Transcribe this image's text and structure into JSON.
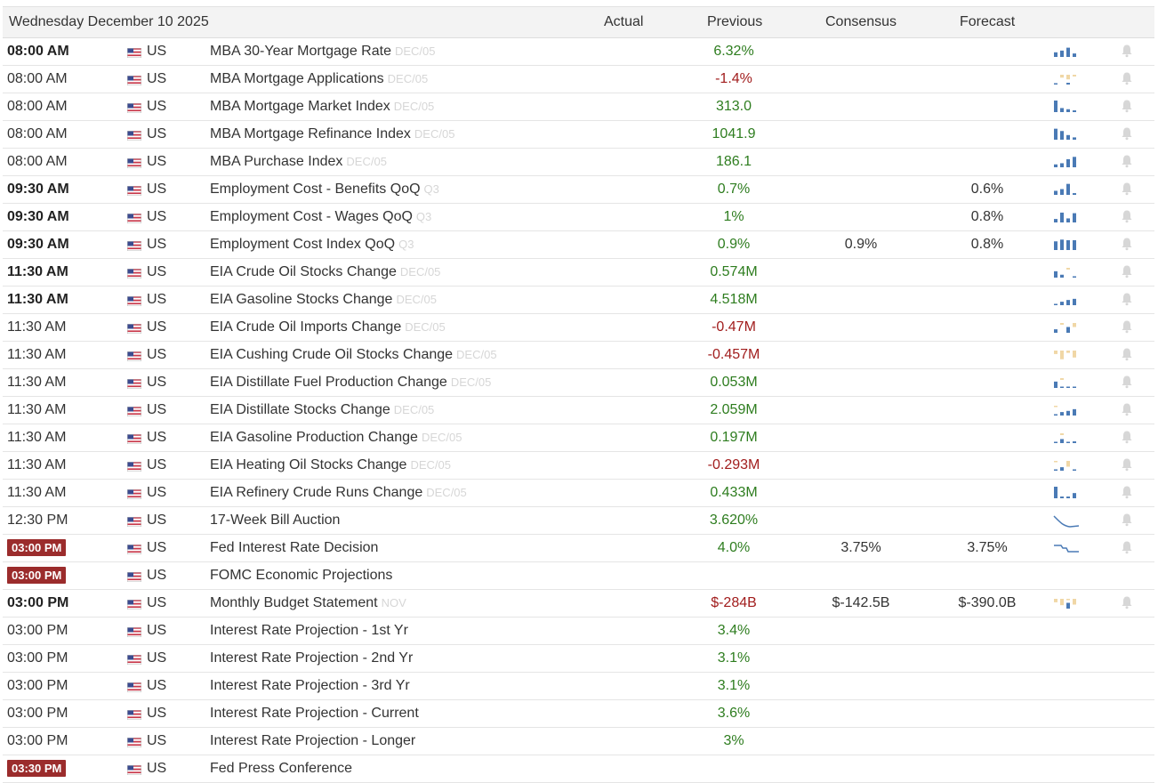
{
  "header": {
    "date": "Wednesday December 10 2025",
    "actual": "Actual",
    "previous": "Previous",
    "consensus": "Consensus",
    "forecast": "Forecast"
  },
  "colors": {
    "positive": "#2e7d1f",
    "negative": "#a11d1d",
    "badge": "#9b2c2c",
    "spark_up": "#4a7ab5",
    "spark_down": "#f0d7a6"
  },
  "rows": [
    {
      "time": "08:00 AM",
      "style": "bold",
      "country": "US",
      "event": "MBA 30-Year Mortgage Rate",
      "ref": "DEC/05",
      "actual": "",
      "previous": "6.32%",
      "prev_tone": "pos",
      "consensus": "",
      "forecast": "",
      "spark": "bars",
      "bars": [
        0.4,
        0.55,
        0.8,
        0.3
      ],
      "bars_neg": [
        0,
        0,
        0,
        0
      ]
    },
    {
      "time": "08:00 AM",
      "style": "normal",
      "country": "US",
      "event": "MBA Mortgage Applications",
      "ref": "DEC/05",
      "actual": "",
      "previous": "-1.4%",
      "prev_tone": "neg",
      "consensus": "",
      "forecast": "",
      "spark": "bars",
      "bars": [
        0.1,
        0,
        0.15,
        0
      ],
      "bars_neg": [
        0,
        0.25,
        0.4,
        0.15
      ]
    },
    {
      "time": "08:00 AM",
      "style": "normal",
      "country": "US",
      "event": "MBA Mortgage Market Index",
      "ref": "DEC/05",
      "actual": "",
      "previous": "313.0",
      "prev_tone": "pos",
      "consensus": "",
      "forecast": "",
      "spark": "bars",
      "bars": [
        1.0,
        0.35,
        0.25,
        0.15
      ],
      "bars_neg": [
        0,
        0,
        0,
        0
      ]
    },
    {
      "time": "08:00 AM",
      "style": "normal",
      "country": "US",
      "event": "MBA Mortgage Refinance Index",
      "ref": "DEC/05",
      "actual": "",
      "previous": "1041.9",
      "prev_tone": "pos",
      "consensus": "",
      "forecast": "",
      "spark": "bars",
      "bars": [
        0.95,
        0.75,
        0.4,
        0.2
      ],
      "bars_neg": [
        0,
        0,
        0,
        0
      ]
    },
    {
      "time": "08:00 AM",
      "style": "normal",
      "country": "US",
      "event": "MBA Purchase Index",
      "ref": "DEC/05",
      "actual": "",
      "previous": "186.1",
      "prev_tone": "pos",
      "consensus": "",
      "forecast": "",
      "spark": "bars",
      "bars": [
        0.25,
        0.35,
        0.7,
        0.9
      ],
      "bars_neg": [
        0,
        0,
        0,
        0
      ]
    },
    {
      "time": "09:30 AM",
      "style": "bold",
      "country": "US",
      "event": "Employment Cost - Benefits QoQ",
      "ref": "Q3",
      "actual": "",
      "previous": "0.7%",
      "prev_tone": "pos",
      "consensus": "",
      "forecast": "0.6%",
      "spark": "bars",
      "bars": [
        0.35,
        0.5,
        0.95,
        0.15
      ],
      "bars_neg": [
        0,
        0,
        0,
        0
      ]
    },
    {
      "time": "09:30 AM",
      "style": "bold",
      "country": "US",
      "event": "Employment Cost - Wages QoQ",
      "ref": "Q3",
      "actual": "",
      "previous": "1%",
      "prev_tone": "pos",
      "consensus": "",
      "forecast": "0.8%",
      "spark": "bars",
      "bars": [
        0.3,
        0.85,
        0.35,
        0.8
      ],
      "bars_neg": [
        0,
        0,
        0,
        0
      ]
    },
    {
      "time": "09:30 AM",
      "style": "bold",
      "country": "US",
      "event": "Employment Cost Index QoQ",
      "ref": "Q3",
      "actual": "",
      "previous": "0.9%",
      "prev_tone": "pos",
      "consensus": "0.9%",
      "forecast": "0.8%",
      "spark": "bars",
      "bars": [
        0.75,
        0.9,
        0.85,
        0.85
      ],
      "bars_neg": [
        0,
        0,
        0,
        0
      ]
    },
    {
      "time": "11:30 AM",
      "style": "bold",
      "country": "US",
      "event": "EIA Crude Oil Stocks Change",
      "ref": "DEC/05",
      "actual": "",
      "previous": "0.574M",
      "prev_tone": "pos",
      "consensus": "",
      "forecast": "",
      "spark": "bars",
      "bars": [
        0.55,
        0.25,
        0,
        0.1
      ],
      "bars_neg": [
        0,
        0,
        0.15,
        0
      ]
    },
    {
      "time": "11:30 AM",
      "style": "bold",
      "country": "US",
      "event": "EIA Gasoline Stocks Change",
      "ref": "DEC/05",
      "actual": "",
      "previous": "4.518M",
      "prev_tone": "pos",
      "consensus": "",
      "forecast": "",
      "spark": "bars",
      "bars": [
        0.1,
        0.3,
        0.45,
        0.55
      ],
      "bars_neg": [
        0,
        0,
        0,
        0
      ]
    },
    {
      "time": "11:30 AM",
      "style": "normal",
      "country": "US",
      "event": "EIA Crude Oil Imports Change",
      "ref": "DEC/05",
      "actual": "",
      "previous": "-0.47M",
      "prev_tone": "neg",
      "consensus": "",
      "forecast": "",
      "spark": "bars",
      "bars": [
        0.3,
        0,
        0.5,
        0
      ],
      "bars_neg": [
        0,
        0.15,
        0,
        0.35
      ]
    },
    {
      "time": "11:30 AM",
      "style": "normal",
      "country": "US",
      "event": "EIA Cushing Crude Oil Stocks Change",
      "ref": "DEC/05",
      "actual": "",
      "previous": "-0.457M",
      "prev_tone": "neg",
      "consensus": "",
      "forecast": "",
      "spark": "bars",
      "bars": [
        0,
        0,
        0,
        0
      ],
      "bars_neg": [
        0.3,
        0.75,
        0.2,
        0.6
      ]
    },
    {
      "time": "11:30 AM",
      "style": "normal",
      "country": "US",
      "event": "EIA Distillate Fuel Production Change",
      "ref": "DEC/05",
      "actual": "",
      "previous": "0.053M",
      "prev_tone": "pos",
      "consensus": "",
      "forecast": "",
      "spark": "bars",
      "bars": [
        0.55,
        0.1,
        0.1,
        0.1
      ],
      "bars_neg": [
        0,
        0.15,
        0,
        0
      ]
    },
    {
      "time": "11:30 AM",
      "style": "normal",
      "country": "US",
      "event": "EIA Distillate Stocks Change",
      "ref": "DEC/05",
      "actual": "",
      "previous": "2.059M",
      "prev_tone": "pos",
      "consensus": "",
      "forecast": "",
      "spark": "bars",
      "bars": [
        0.1,
        0.3,
        0.4,
        0.55
      ],
      "bars_neg": [
        0.1,
        0,
        0,
        0
      ]
    },
    {
      "time": "11:30 AM",
      "style": "normal",
      "country": "US",
      "event": "EIA Gasoline Production Change",
      "ref": "DEC/05",
      "actual": "",
      "previous": "0.197M",
      "prev_tone": "pos",
      "consensus": "",
      "forecast": "",
      "spark": "bars",
      "bars": [
        0.1,
        0.35,
        0.1,
        0.15
      ],
      "bars_neg": [
        0,
        0.15,
        0,
        0
      ]
    },
    {
      "time": "11:30 AM",
      "style": "normal",
      "country": "US",
      "event": "EIA Heating Oil Stocks Change",
      "ref": "DEC/05",
      "actual": "",
      "previous": "-0.293M",
      "prev_tone": "neg",
      "consensus": "",
      "forecast": "",
      "spark": "bars",
      "bars": [
        0.1,
        0.3,
        0,
        0.1
      ],
      "bars_neg": [
        0.1,
        0,
        0.5,
        0
      ]
    },
    {
      "time": "11:30 AM",
      "style": "normal",
      "country": "US",
      "event": "EIA Refinery Crude Runs Change",
      "ref": "DEC/05",
      "actual": "",
      "previous": "0.433M",
      "prev_tone": "pos",
      "consensus": "",
      "forecast": "",
      "spark": "bars",
      "bars": [
        1.0,
        0.15,
        0.15,
        0.45
      ],
      "bars_neg": [
        0,
        0,
        0,
        0
      ]
    },
    {
      "time": "12:30 PM",
      "style": "normal",
      "country": "US",
      "event": "17-Week Bill Auction",
      "ref": "",
      "actual": "",
      "previous": "3.620%",
      "prev_tone": "pos",
      "consensus": "",
      "forecast": "",
      "spark": "curve"
    },
    {
      "time": "03:00 PM",
      "style": "badge",
      "country": "US",
      "event": "Fed Interest Rate Decision",
      "ref": "",
      "actual": "",
      "previous": "4.0%",
      "prev_tone": "pos",
      "consensus": "3.75%",
      "forecast": "3.75%",
      "spark": "step"
    },
    {
      "time": "03:00 PM",
      "style": "badge",
      "country": "US",
      "event": "FOMC Economic Projections",
      "ref": "",
      "actual": "",
      "previous": "",
      "prev_tone": "pos",
      "consensus": "",
      "forecast": "",
      "spark": "none",
      "nobell": true
    },
    {
      "time": "03:00 PM",
      "style": "bold",
      "country": "US",
      "event": "Monthly Budget Statement",
      "ref": "NOV",
      "actual": "",
      "previous": "$-284B",
      "prev_tone": "neg",
      "consensus": "$-142.5B",
      "forecast": "$-390.0B",
      "spark": "bars",
      "bars": [
        0,
        0,
        0.5,
        0
      ],
      "bars_neg": [
        0.3,
        0.55,
        0.1,
        0.5
      ]
    },
    {
      "time": "03:00 PM",
      "style": "normal",
      "country": "US",
      "event": "Interest Rate Projection - 1st Yr",
      "ref": "",
      "actual": "",
      "previous": "3.4%",
      "prev_tone": "pos",
      "consensus": "",
      "forecast": "",
      "spark": "none",
      "nobell": true
    },
    {
      "time": "03:00 PM",
      "style": "normal",
      "country": "US",
      "event": "Interest Rate Projection - 2nd Yr",
      "ref": "",
      "actual": "",
      "previous": "3.1%",
      "prev_tone": "pos",
      "consensus": "",
      "forecast": "",
      "spark": "none",
      "nobell": true
    },
    {
      "time": "03:00 PM",
      "style": "normal",
      "country": "US",
      "event": "Interest Rate Projection - 3rd Yr",
      "ref": "",
      "actual": "",
      "previous": "3.1%",
      "prev_tone": "pos",
      "consensus": "",
      "forecast": "",
      "spark": "none",
      "nobell": true
    },
    {
      "time": "03:00 PM",
      "style": "normal",
      "country": "US",
      "event": "Interest Rate Projection - Current",
      "ref": "",
      "actual": "",
      "previous": "3.6%",
      "prev_tone": "pos",
      "consensus": "",
      "forecast": "",
      "spark": "none",
      "nobell": true
    },
    {
      "time": "03:00 PM",
      "style": "normal",
      "country": "US",
      "event": "Interest Rate Projection - Longer",
      "ref": "",
      "actual": "",
      "previous": "3%",
      "prev_tone": "pos",
      "consensus": "",
      "forecast": "",
      "spark": "none",
      "nobell": true
    },
    {
      "time": "03:30 PM",
      "style": "badge",
      "country": "US",
      "event": "Fed Press Conference",
      "ref": "",
      "actual": "",
      "previous": "",
      "prev_tone": "pos",
      "consensus": "",
      "forecast": "",
      "spark": "none",
      "nobell": true
    }
  ]
}
